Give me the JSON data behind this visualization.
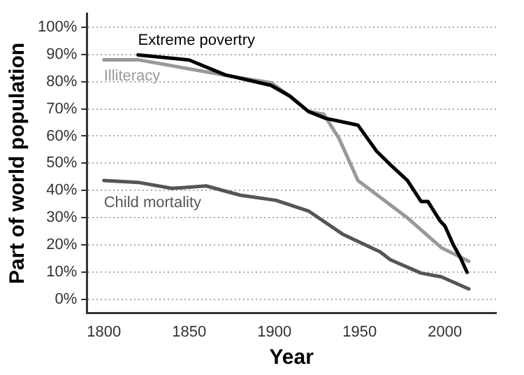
{
  "chart_data": {
    "type": "line",
    "xlabel": "Year",
    "ylabel": "Part of world population",
    "xlim": [
      1790,
      2030
    ],
    "xticks": [
      1800,
      1850,
      1900,
      1950,
      2000
    ],
    "ylim": [
      -5,
      105
    ],
    "yticks": [
      {
        "value": 0,
        "label": "0%"
      },
      {
        "value": 10,
        "label": "10%"
      },
      {
        "value": 20,
        "label": "20%"
      },
      {
        "value": 30,
        "label": "30%"
      },
      {
        "value": 40,
        "label": "40%"
      },
      {
        "value": 50,
        "label": "50%"
      },
      {
        "value": 60,
        "label": "60%"
      },
      {
        "value": 70,
        "label": "70%"
      },
      {
        "value": 80,
        "label": "80%"
      },
      {
        "value": 90,
        "label": "90%"
      },
      {
        "value": 100,
        "label": "100%"
      }
    ],
    "grid": "y",
    "legend": false,
    "marker": "none",
    "line_style": "solid",
    "series": [
      {
        "name": "Extreme povertry",
        "color": "#000000",
        "x": [
          1820,
          1850,
          1871,
          1898,
          1909,
          1920,
          1930,
          1949,
          1960,
          1968,
          1978,
          1986,
          1990,
          1997,
          2000,
          2005,
          2009,
          2013
        ],
        "values": [
          89.8,
          87.9,
          82.5,
          78.6,
          74.7,
          69,
          66.5,
          64,
          54.4,
          49.5,
          43.7,
          36,
          36,
          29,
          27,
          20,
          15.5,
          10
        ]
      },
      {
        "name": "Illiteracy",
        "color": "#999999",
        "x": [
          1800,
          1820,
          1874,
          1898,
          1909,
          1920,
          1929,
          1938,
          1949,
          1978,
          1998,
          2014
        ],
        "values": [
          88,
          88,
          82,
          79.6,
          74.7,
          69,
          68,
          59,
          43.7,
          30,
          19,
          14
        ]
      },
      {
        "name": "Child mortality",
        "color": "#555555",
        "x": [
          1800,
          1820,
          1840,
          1860,
          1880,
          1901,
          1920,
          1940,
          1962,
          1968,
          1986,
          1998,
          2014
        ],
        "values": [
          43.7,
          43,
          40.8,
          41.7,
          38.3,
          36.4,
          32.5,
          24,
          17.5,
          14.6,
          9.7,
          8.3,
          3.9
        ]
      }
    ]
  }
}
